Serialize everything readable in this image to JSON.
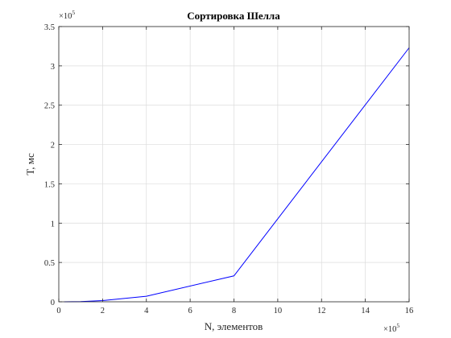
{
  "chart_data": {
    "type": "line",
    "title": "Сортировка Шелла",
    "xlabel": "N, элементов",
    "ylabel": "T, мс",
    "x_multiplier": {
      "base": "×10",
      "exponent": "5"
    },
    "y_multiplier": {
      "base": "×10",
      "exponent": "5"
    },
    "xlim": [
      0,
      16
    ],
    "ylim": [
      0,
      3.5
    ],
    "x_ticks": [
      0,
      2,
      4,
      6,
      8,
      10,
      12,
      14,
      16
    ],
    "y_ticks": [
      0,
      0.5,
      1,
      1.5,
      2,
      2.5,
      3,
      3.5
    ],
    "x_tick_labels": [
      "0",
      "2",
      "4",
      "6",
      "8",
      "10",
      "12",
      "14",
      "16"
    ],
    "y_tick_labels": [
      "0",
      "0.5",
      "1",
      "1.5",
      "2",
      "2.5",
      "3",
      "3.5"
    ],
    "grid": true,
    "series": [
      {
        "color": "#0000ff",
        "x": [
          0.25,
          1,
          2,
          4,
          8,
          16
        ],
        "y": [
          0.0002,
          0.003,
          0.015,
          0.07,
          0.33,
          3.23
        ]
      }
    ]
  }
}
